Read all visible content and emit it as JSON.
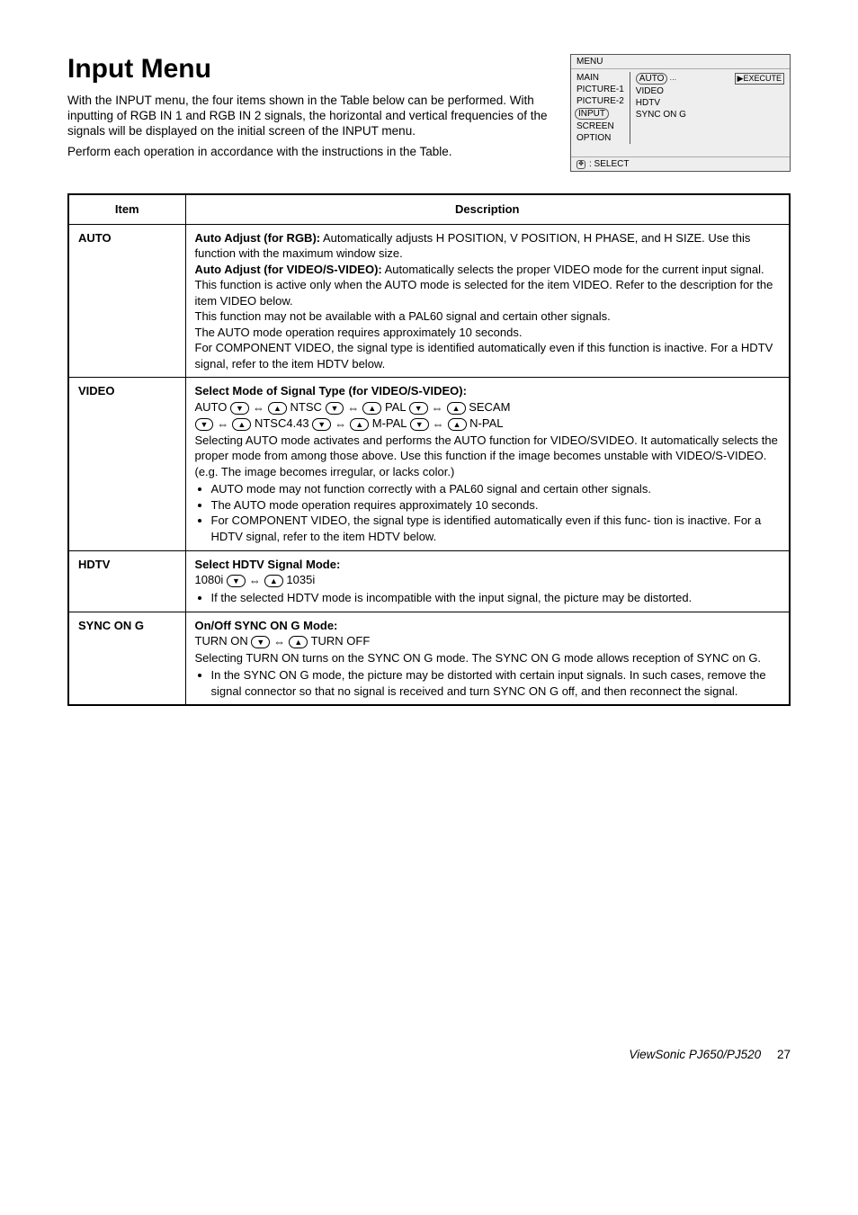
{
  "page": {
    "title": "Input Menu",
    "intro1": "With the INPUT menu, the four items shown in the Table below can be performed. With inputting of RGB IN 1 and RGB IN 2 signals, the horizontal and vertical frequencies of the signals will be displayed on the initial screen of the INPUT menu.",
    "intro2": "Perform each operation in accordance with the instructions in the Table."
  },
  "menubox": {
    "header": "MENU",
    "left": [
      "MAIN",
      "PICTURE-1",
      "PICTURE-2",
      "INPUT",
      "SCREEN",
      "OPTION"
    ],
    "right": [
      "AUTO",
      "VIDEO",
      "HDTV",
      "SYNC ON G"
    ],
    "execute": "▶EXECUTE",
    "footer": ": SELECT"
  },
  "table": {
    "head_item": "Item",
    "head_desc": "Description",
    "rows": {
      "auto": {
        "label": "AUTO",
        "l1a": "Auto Adjust (for RGB):",
        "l1b": " Automatically adjusts H POSITION, V POSITION, H PHASE, and H SIZE. Use this function with the maximum window size.",
        "l2a": "Auto Adjust (for VIDEO/S-VIDEO):",
        "l2b": " Automatically selects the proper VIDEO mode for the current input signal. This function is active only when the AUTO mode is selected for the item VIDEO. Refer to the description for the item VIDEO below.",
        "l3": "This function may not be available with a PAL60 signal and certain other signals.",
        "l4": "The AUTO mode operation requires approximately 10 seconds.",
        "l5": "For COMPONENT VIDEO, the signal type is identified automatically even if this function is inactive. For a HDTV signal, refer to the item HDTV below."
      },
      "video": {
        "label": "VIDEO",
        "h": "Select Mode of Signal Type (for VIDEO/S-VIDEO):",
        "seq": [
          "AUTO",
          "NTSC",
          "PAL",
          "SECAM",
          "NTSC4.43",
          "M-PAL",
          "N-PAL"
        ],
        "p1": "Selecting AUTO mode activates and performs the AUTO function for VIDEO/SVIDEO. It automatically selects the proper mode from among those above. Use this function if the image becomes unstable with VIDEO/S-VIDEO. (e.g. The image becomes irregular, or lacks color.)",
        "b1": "AUTO mode may not function correctly with a PAL60 signal and certain other signals.",
        "b2": "The AUTO mode operation requires approximately 10 seconds.",
        "b3": "For COMPONENT VIDEO, the signal type is identified automatically even if this func- tion is inactive. For a HDTV signal, refer to the item HDTV below."
      },
      "hdtv": {
        "label": "HDTV",
        "h": "Select HDTV Signal Mode:",
        "v1": "1080i",
        "v2": "1035i",
        "b1": "If the selected HDTV mode is incompatible with the input signal, the picture may be distorted."
      },
      "sync": {
        "label": "SYNC ON G",
        "h": "On/Off SYNC ON G Mode:",
        "v1": "TURN ON",
        "v2": "TURN OFF",
        "p1": "Selecting TURN ON turns on the SYNC ON G mode. The SYNC ON G mode allows reception of SYNC on G.",
        "b1": "In the SYNC ON G mode, the picture may be distorted with certain input signals. In such cases, remove the signal connector so that no signal is received and turn SYNC ON G off, and then reconnect the signal."
      }
    }
  },
  "footer": {
    "product": "ViewSonic  PJ650/PJ520",
    "page": "27"
  }
}
